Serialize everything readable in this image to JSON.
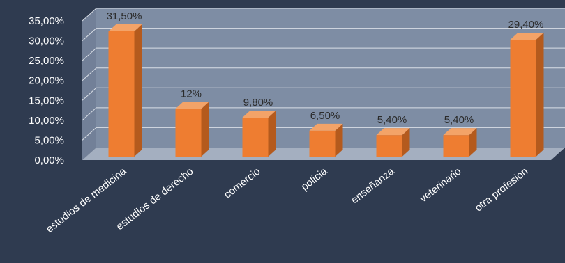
{
  "colors": {
    "background": "#2f3b50",
    "bar_front": "#ee7d31",
    "bar_side": "#b45a1d",
    "bar_top": "#f3a368",
    "back_wall": "#7e8da4",
    "floor": "#a4afc0",
    "gridline": "#d9dee6",
    "axis_text": "#ffffff",
    "data_label_text": "#2b2b2b"
  },
  "chart_data": {
    "type": "bar",
    "style": "3d-column",
    "categories": [
      "estudios de medicina",
      "estudios de derecho",
      "comercio",
      "policia",
      "enseñanza",
      "veterinario",
      "otra profesion"
    ],
    "values": [
      31.5,
      12,
      9.8,
      6.5,
      5.4,
      5.4,
      29.4
    ],
    "data_labels": [
      "31,50%",
      "12%",
      "9,80%",
      "6,50%",
      "5,40%",
      "5,40%",
      "29,40%"
    ],
    "y_ticks": [
      "0,00%",
      "5,00%",
      "10,00%",
      "15,00%",
      "20,00%",
      "25,00%",
      "30,00%",
      "35,00%"
    ],
    "ylim": [
      0,
      35
    ],
    "title": "",
    "xlabel": "",
    "ylabel": "",
    "grid": true,
    "legend": "none"
  }
}
